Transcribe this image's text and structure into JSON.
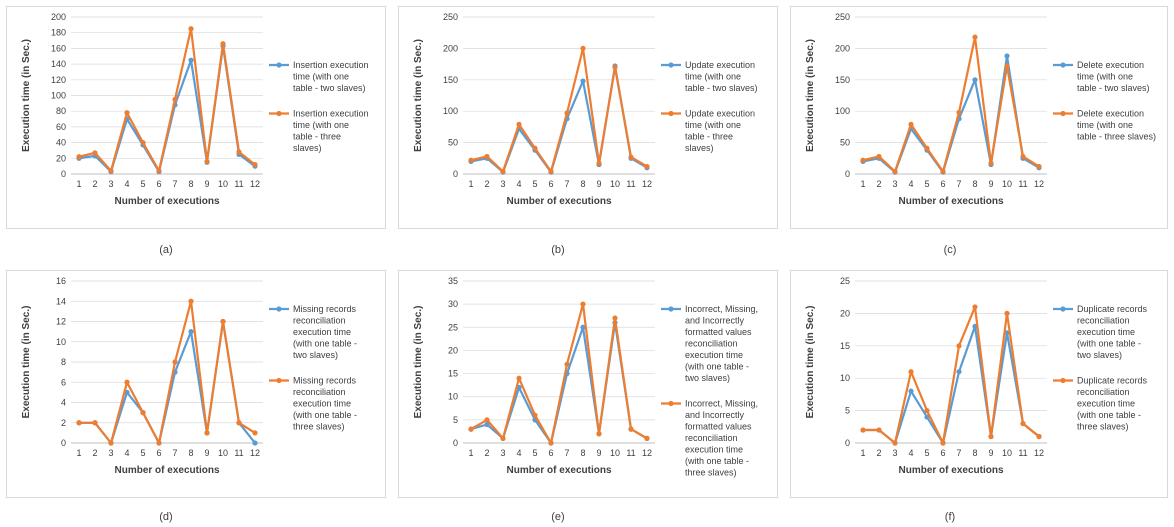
{
  "colors": {
    "series1": "#5b9bd5",
    "series2": "#ed7d31",
    "grid": "#d9d9d9",
    "axis": "#bfbfbf"
  },
  "chart_data": [
    {
      "type": "line",
      "caption": "(a)",
      "ylabel": "Execution time (in Sec.)",
      "xlabel": "Number of executions",
      "ylim": [
        0,
        200
      ],
      "yticks": [
        0,
        20,
        40,
        60,
        80,
        100,
        120,
        140,
        160,
        180,
        200
      ],
      "categories": [
        "1",
        "2",
        "3",
        "4",
        "5",
        "6",
        "7",
        "8",
        "9",
        "10",
        "11",
        "12"
      ],
      "series": [
        {
          "name": "Insertion execution time (with one table - two slaves)",
          "legend_lines": [
            "Insertion execution",
            "time (with one",
            "table - two slaves)"
          ],
          "values": [
            20,
            23,
            3,
            70,
            37,
            3,
            88,
            145,
            15,
            163,
            25,
            10
          ]
        },
        {
          "name": "Insertion execution time (with one table - three slaves)",
          "legend_lines": [
            "Insertion execution",
            "time (with one",
            "table - three",
            "slaves)"
          ],
          "values": [
            22,
            27,
            4,
            78,
            40,
            4,
            95,
            185,
            16,
            166,
            28,
            12
          ]
        }
      ]
    },
    {
      "type": "line",
      "caption": "(b)",
      "ylabel": "Execution time (in Sec.)",
      "xlabel": "Number of executions",
      "ylim": [
        0,
        250
      ],
      "yticks": [
        0,
        50,
        100,
        150,
        200,
        250
      ],
      "categories": [
        "1",
        "2",
        "3",
        "4",
        "5",
        "6",
        "7",
        "8",
        "9",
        "10",
        "11",
        "12"
      ],
      "series": [
        {
          "name": "Update execution time (with one table - two slaves)",
          "legend_lines": [
            "Update execution",
            "time (with one",
            "table - two slaves)"
          ],
          "values": [
            20,
            25,
            3,
            72,
            38,
            3,
            88,
            148,
            15,
            172,
            25,
            10
          ]
        },
        {
          "name": "Update execution time (with one table - three slaves)",
          "legend_lines": [
            "Update execution",
            "time (with one",
            "table - three",
            "slaves)"
          ],
          "values": [
            22,
            28,
            4,
            79,
            41,
            4,
            97,
            200,
            17,
            170,
            27,
            12
          ]
        }
      ]
    },
    {
      "type": "line",
      "caption": "(c)",
      "ylabel": "Execution time (in Sec.)",
      "xlabel": "Number of executions",
      "ylim": [
        0,
        250
      ],
      "yticks": [
        0,
        50,
        100,
        150,
        200,
        250
      ],
      "categories": [
        "1",
        "2",
        "3",
        "4",
        "5",
        "6",
        "7",
        "8",
        "9",
        "10",
        "11",
        "12"
      ],
      "series": [
        {
          "name": "Delete execution time (with one table - two slaves)",
          "legend_lines": [
            "Delete execution",
            "time (with one",
            "table - two slaves)"
          ],
          "values": [
            20,
            25,
            3,
            72,
            38,
            3,
            88,
            150,
            15,
            188,
            25,
            10
          ]
        },
        {
          "name": "Delete execution time (with one table - three slaves)",
          "legend_lines": [
            "Delete execution",
            "time (with one",
            "table - three slaves)"
          ],
          "values": [
            22,
            28,
            4,
            79,
            41,
            4,
            98,
            218,
            17,
            172,
            28,
            12
          ]
        }
      ]
    },
    {
      "type": "line",
      "caption": "(d)",
      "ylabel": "Execution time (in Sec.)",
      "xlabel": "Number of executions",
      "ylim": [
        0,
        16
      ],
      "yticks": [
        0,
        2,
        4,
        6,
        8,
        10,
        12,
        14,
        16
      ],
      "categories": [
        "1",
        "2",
        "3",
        "4",
        "5",
        "6",
        "7",
        "8",
        "9",
        "10",
        "11",
        "12"
      ],
      "series": [
        {
          "name": "Missing records reconciliation execution time (with one table - two slaves)",
          "legend_lines": [
            "Missing records",
            "reconciliation",
            "execution time",
            "(with one table -",
            "two slaves)"
          ],
          "values": [
            2,
            2,
            0,
            5,
            3,
            0,
            7,
            11,
            1,
            12,
            2,
            0
          ]
        },
        {
          "name": "Missing records reconciliation execution time (with one table - three slaves)",
          "legend_lines": [
            "Missing records",
            "reconciliation",
            "execution time",
            "(with one table -",
            "three slaves)"
          ],
          "values": [
            2,
            2,
            0,
            6,
            3,
            0,
            8,
            14,
            1,
            12,
            2,
            1
          ]
        }
      ]
    },
    {
      "type": "line",
      "caption": "(e)",
      "ylabel": "Execution time (in Sec.)",
      "xlabel": "Number of executions",
      "ylim": [
        0,
        35
      ],
      "yticks": [
        0,
        5,
        10,
        15,
        20,
        25,
        30,
        35
      ],
      "categories": [
        "1",
        "2",
        "3",
        "4",
        "5",
        "6",
        "7",
        "8",
        "9",
        "10",
        "11",
        "12"
      ],
      "series": [
        {
          "name": "Incorrect, Missing, and Incorrectly formatted values reconciliation execution time (with one table - two slaves)",
          "legend_lines": [
            "Incorrect, Missing,",
            "and Incorrectly",
            "formatted values",
            "reconciliation",
            "execution time",
            "(with one table -",
            "two slaves)"
          ],
          "values": [
            3,
            4,
            1,
            12,
            5,
            0,
            15,
            25,
            2,
            26,
            3,
            1
          ]
        },
        {
          "name": "Incorrect, Missing, and Incorrectly formatted values reconciliation execution time (with one table - three slaves)",
          "legend_lines": [
            "Incorrect, Missing,",
            "and Incorrectly",
            "formatted values",
            "reconciliation",
            "execution time",
            "(with one table -",
            "three slaves)"
          ],
          "values": [
            3,
            5,
            1,
            14,
            6,
            0,
            17,
            30,
            2,
            27,
            3,
            1
          ]
        }
      ]
    },
    {
      "type": "line",
      "caption": "(f)",
      "ylabel": "Execution time (in Sec.)",
      "xlabel": "Number of executions",
      "ylim": [
        0,
        25
      ],
      "yticks": [
        0,
        5,
        10,
        15,
        20,
        25
      ],
      "categories": [
        "1",
        "2",
        "3",
        "4",
        "5",
        "6",
        "7",
        "8",
        "9",
        "10",
        "11",
        "12"
      ],
      "series": [
        {
          "name": "Duplicate records reconciliation execution time (with one table - two slaves)",
          "legend_lines": [
            "Duplicate records",
            "reconciliation",
            "execution time",
            "(with one table -",
            "two slaves)"
          ],
          "values": [
            2,
            2,
            0,
            8,
            4,
            0,
            11,
            18,
            1,
            17,
            3,
            1
          ]
        },
        {
          "name": "Duplicate records reconciliation execution time (with one table - three slaves)",
          "legend_lines": [
            "Duplicate records",
            "reconciliation",
            "execution time",
            "(with one table -",
            "three slaves)"
          ],
          "values": [
            2,
            2,
            0,
            11,
            5,
            0,
            15,
            21,
            1,
            20,
            3,
            1
          ]
        }
      ]
    }
  ]
}
